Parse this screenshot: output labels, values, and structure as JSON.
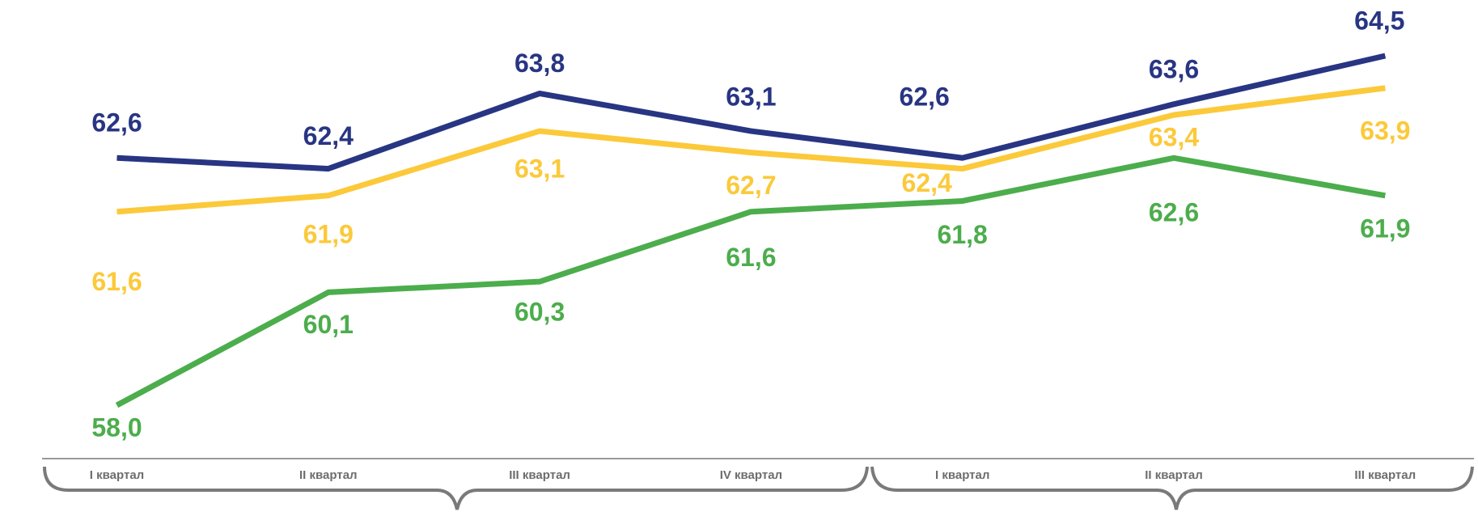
{
  "chart_data": {
    "type": "line",
    "categories": [
      "I квартал",
      "II квартал",
      "III квартал",
      "IV квартал",
      "I квартал",
      "II квартал",
      "III квартал"
    ],
    "series": [
      {
        "color": "#283583",
        "values": [
          62.6,
          62.4,
          63.8,
          63.1,
          62.6,
          63.6,
          64.5
        ],
        "value_labels": [
          "62,6",
          "62,4",
          "63,8",
          "63,1",
          "62,6",
          "63,6",
          "64,5"
        ]
      },
      {
        "color": "#fbc93a",
        "values": [
          61.6,
          61.9,
          63.1,
          62.7,
          62.4,
          63.4,
          63.9
        ],
        "value_labels": [
          "61,6",
          "61,9",
          "63,1",
          "62,7",
          "62,4",
          "63,4",
          "63,9"
        ]
      },
      {
        "color": "#4cad4c",
        "values": [
          58.0,
          60.1,
          60.3,
          61.6,
          61.8,
          62.6,
          61.9
        ],
        "value_labels": [
          "58,0",
          "60,1",
          "60,3",
          "61,6",
          "61,8",
          "62,6",
          "61,9"
        ]
      }
    ]
  }
}
